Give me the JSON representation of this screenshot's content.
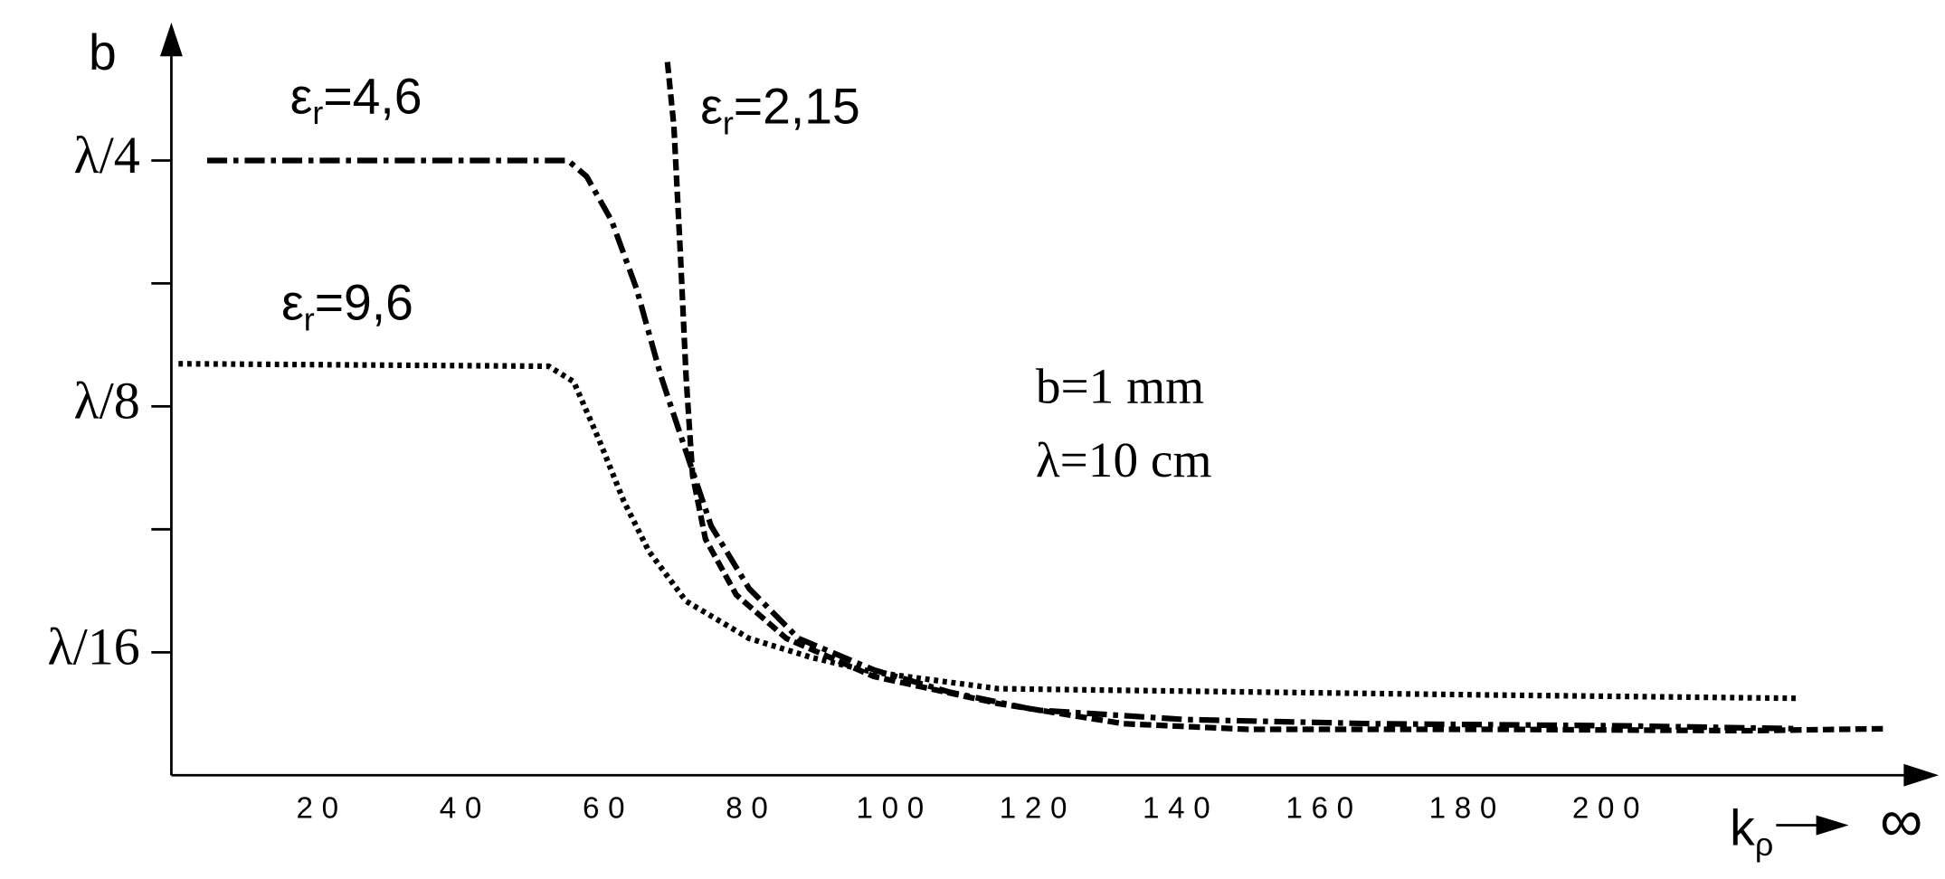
{
  "chart_data": {
    "type": "line",
    "ylabel": "b",
    "xlabel": "kρ",
    "xlabel_suffix": "∞",
    "annotations": [
      "b=1 mm",
      "λ=10 cm"
    ],
    "xlim": [
      -1,
      245
    ],
    "xticks": [
      20,
      40,
      60,
      80,
      100,
      120,
      140,
      160,
      180,
      200
    ],
    "ylim": [
      4.42,
      35.36
    ],
    "log_y": true,
    "yticks": [
      {
        "value": 25,
        "label": "λ/4"
      },
      {
        "value": 12.5,
        "label": "λ/8"
      },
      {
        "value": 6.25,
        "label": "λ/16"
      }
    ],
    "yminor_ticks": [
      17.68,
      8.84
    ],
    "series": [
      {
        "name": "εr=4,6",
        "color": "#000000",
        "dash": "dashdot",
        "x": [
          4,
          54.4,
          57,
          60.5,
          64,
          67.4,
          70.9,
          74.4,
          79.7,
          86.6,
          97.1,
          107.6,
          119.8,
          140.7,
          166.9,
          201.8,
          226.2
        ],
        "values": [
          25,
          25,
          23.9,
          21.1,
          17.4,
          13.6,
          11.0,
          8.92,
          7.48,
          6.5,
          5.95,
          5.59,
          5.31,
          5.17,
          5.11,
          5.08,
          5.04
        ]
      },
      {
        "name": "εr=2,15",
        "color": "#000000",
        "dash": "dashed",
        "x": [
          68.3,
          69.2,
          70.1,
          70.9,
          71.8,
          73.6,
          77.9,
          84.9,
          97.1,
          114.5,
          132,
          149.4,
          184.3,
          219.2,
          238.4
        ],
        "values": [
          33.0,
          27.5,
          19.3,
          13.6,
          10.3,
          8.6,
          7.35,
          6.5,
          5.84,
          5.41,
          5.11,
          5.03,
          5.03,
          5.01,
          5.04
        ]
      },
      {
        "name": "εr=9,6",
        "color": "#000000",
        "dash": "dotted",
        "x": [
          0,
          51.7,
          55.2,
          58.7,
          62.2,
          65.7,
          70.9,
          79.7,
          88.4,
          97.1,
          114.5,
          149.4,
          184.3,
          226.2
        ],
        "values": [
          14.1,
          14.0,
          13.4,
          11.4,
          9.57,
          8.31,
          7.22,
          6.5,
          6.16,
          5.91,
          5.64,
          5.59,
          5.54,
          5.49
        ]
      }
    ]
  }
}
